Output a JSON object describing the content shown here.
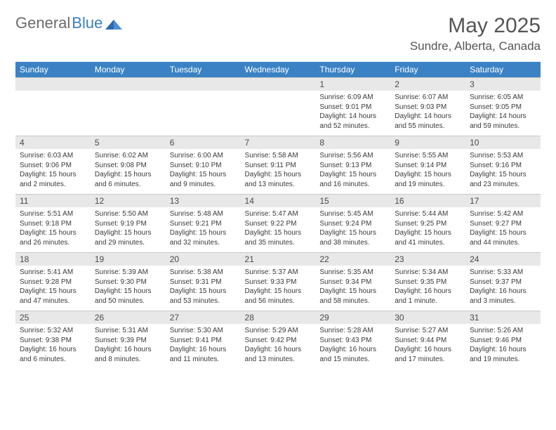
{
  "logo": {
    "text_gray": "General",
    "text_blue": "Blue"
  },
  "title": "May 2025",
  "location": "Sundre, Alberta, Canada",
  "colors": {
    "header_bg": "#3b82c4",
    "header_text": "#ffffff",
    "daynum_bg": "#e8e8e8",
    "cell_text": "#3a3a3a",
    "title_text": "#555555"
  },
  "weekdays": [
    "Sunday",
    "Monday",
    "Tuesday",
    "Wednesday",
    "Thursday",
    "Friday",
    "Saturday"
  ],
  "weeks": [
    {
      "nums": [
        "",
        "",
        "",
        "",
        "1",
        "2",
        "3"
      ],
      "cells": [
        [],
        [],
        [],
        [],
        [
          "Sunrise: 6:09 AM",
          "Sunset: 9:01 PM",
          "Daylight: 14 hours",
          "and 52 minutes."
        ],
        [
          "Sunrise: 6:07 AM",
          "Sunset: 9:03 PM",
          "Daylight: 14 hours",
          "and 55 minutes."
        ],
        [
          "Sunrise: 6:05 AM",
          "Sunset: 9:05 PM",
          "Daylight: 14 hours",
          "and 59 minutes."
        ]
      ]
    },
    {
      "nums": [
        "4",
        "5",
        "6",
        "7",
        "8",
        "9",
        "10"
      ],
      "cells": [
        [
          "Sunrise: 6:03 AM",
          "Sunset: 9:06 PM",
          "Daylight: 15 hours",
          "and 2 minutes."
        ],
        [
          "Sunrise: 6:02 AM",
          "Sunset: 9:08 PM",
          "Daylight: 15 hours",
          "and 6 minutes."
        ],
        [
          "Sunrise: 6:00 AM",
          "Sunset: 9:10 PM",
          "Daylight: 15 hours",
          "and 9 minutes."
        ],
        [
          "Sunrise: 5:58 AM",
          "Sunset: 9:11 PM",
          "Daylight: 15 hours",
          "and 13 minutes."
        ],
        [
          "Sunrise: 5:56 AM",
          "Sunset: 9:13 PM",
          "Daylight: 15 hours",
          "and 16 minutes."
        ],
        [
          "Sunrise: 5:55 AM",
          "Sunset: 9:14 PM",
          "Daylight: 15 hours",
          "and 19 minutes."
        ],
        [
          "Sunrise: 5:53 AM",
          "Sunset: 9:16 PM",
          "Daylight: 15 hours",
          "and 23 minutes."
        ]
      ]
    },
    {
      "nums": [
        "11",
        "12",
        "13",
        "14",
        "15",
        "16",
        "17"
      ],
      "cells": [
        [
          "Sunrise: 5:51 AM",
          "Sunset: 9:18 PM",
          "Daylight: 15 hours",
          "and 26 minutes."
        ],
        [
          "Sunrise: 5:50 AM",
          "Sunset: 9:19 PM",
          "Daylight: 15 hours",
          "and 29 minutes."
        ],
        [
          "Sunrise: 5:48 AM",
          "Sunset: 9:21 PM",
          "Daylight: 15 hours",
          "and 32 minutes."
        ],
        [
          "Sunrise: 5:47 AM",
          "Sunset: 9:22 PM",
          "Daylight: 15 hours",
          "and 35 minutes."
        ],
        [
          "Sunrise: 5:45 AM",
          "Sunset: 9:24 PM",
          "Daylight: 15 hours",
          "and 38 minutes."
        ],
        [
          "Sunrise: 5:44 AM",
          "Sunset: 9:25 PM",
          "Daylight: 15 hours",
          "and 41 minutes."
        ],
        [
          "Sunrise: 5:42 AM",
          "Sunset: 9:27 PM",
          "Daylight: 15 hours",
          "and 44 minutes."
        ]
      ]
    },
    {
      "nums": [
        "18",
        "19",
        "20",
        "21",
        "22",
        "23",
        "24"
      ],
      "cells": [
        [
          "Sunrise: 5:41 AM",
          "Sunset: 9:28 PM",
          "Daylight: 15 hours",
          "and 47 minutes."
        ],
        [
          "Sunrise: 5:39 AM",
          "Sunset: 9:30 PM",
          "Daylight: 15 hours",
          "and 50 minutes."
        ],
        [
          "Sunrise: 5:38 AM",
          "Sunset: 9:31 PM",
          "Daylight: 15 hours",
          "and 53 minutes."
        ],
        [
          "Sunrise: 5:37 AM",
          "Sunset: 9:33 PM",
          "Daylight: 15 hours",
          "and 56 minutes."
        ],
        [
          "Sunrise: 5:35 AM",
          "Sunset: 9:34 PM",
          "Daylight: 15 hours",
          "and 58 minutes."
        ],
        [
          "Sunrise: 5:34 AM",
          "Sunset: 9:35 PM",
          "Daylight: 16 hours",
          "and 1 minute."
        ],
        [
          "Sunrise: 5:33 AM",
          "Sunset: 9:37 PM",
          "Daylight: 16 hours",
          "and 3 minutes."
        ]
      ]
    },
    {
      "nums": [
        "25",
        "26",
        "27",
        "28",
        "29",
        "30",
        "31"
      ],
      "cells": [
        [
          "Sunrise: 5:32 AM",
          "Sunset: 9:38 PM",
          "Daylight: 16 hours",
          "and 6 minutes."
        ],
        [
          "Sunrise: 5:31 AM",
          "Sunset: 9:39 PM",
          "Daylight: 16 hours",
          "and 8 minutes."
        ],
        [
          "Sunrise: 5:30 AM",
          "Sunset: 9:41 PM",
          "Daylight: 16 hours",
          "and 11 minutes."
        ],
        [
          "Sunrise: 5:29 AM",
          "Sunset: 9:42 PM",
          "Daylight: 16 hours",
          "and 13 minutes."
        ],
        [
          "Sunrise: 5:28 AM",
          "Sunset: 9:43 PM",
          "Daylight: 16 hours",
          "and 15 minutes."
        ],
        [
          "Sunrise: 5:27 AM",
          "Sunset: 9:44 PM",
          "Daylight: 16 hours",
          "and 17 minutes."
        ],
        [
          "Sunrise: 5:26 AM",
          "Sunset: 9:46 PM",
          "Daylight: 16 hours",
          "and 19 minutes."
        ]
      ]
    }
  ]
}
